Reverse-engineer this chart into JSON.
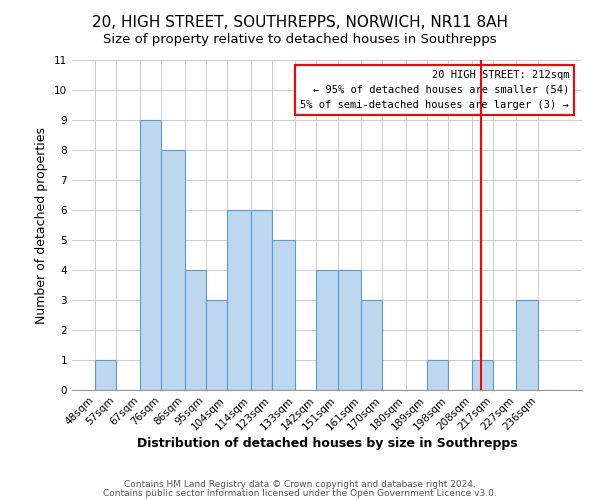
{
  "title": "20, HIGH STREET, SOUTHREPPS, NORWICH, NR11 8AH",
  "subtitle": "Size of property relative to detached houses in Southrepps",
  "xlabel": "Distribution of detached houses by size in Southrepps",
  "ylabel": "Number of detached properties",
  "bin_labels": [
    "48sqm",
    "57sqm",
    "67sqm",
    "76sqm",
    "86sqm",
    "95sqm",
    "104sqm",
    "114sqm",
    "123sqm",
    "133sqm",
    "142sqm",
    "151sqm",
    "161sqm",
    "170sqm",
    "180sqm",
    "189sqm",
    "198sqm",
    "208sqm",
    "217sqm",
    "227sqm",
    "236sqm"
  ],
  "bin_edges": [
    48,
    57,
    67,
    76,
    86,
    95,
    104,
    114,
    123,
    133,
    142,
    151,
    161,
    170,
    180,
    189,
    198,
    208,
    217,
    227,
    236
  ],
  "bar_heights": [
    1,
    0,
    9,
    8,
    4,
    3,
    6,
    6,
    5,
    0,
    4,
    4,
    3,
    0,
    0,
    1,
    0,
    1,
    0,
    3,
    0
  ],
  "bar_color": "#bdd7ee",
  "bar_edge_color": "#5b9bd5",
  "grid_color": "#cccccc",
  "red_line_x": 212,
  "annotation_text": "20 HIGH STREET: 212sqm\n← 95% of detached houses are smaller (54)\n5% of semi-detached houses are larger (3) →",
  "annotation_box_color": "#ff0000",
  "ylim": [
    0,
    11
  ],
  "yticks": [
    0,
    1,
    2,
    3,
    4,
    5,
    6,
    7,
    8,
    9,
    10,
    11
  ],
  "footer_line1": "Contains HM Land Registry data © Crown copyright and database right 2024.",
  "footer_line2": "Contains public sector information licensed under the Open Government Licence v3.0.",
  "background_color": "#ffffff",
  "title_fontsize": 11,
  "subtitle_fontsize": 9.5,
  "axis_label_fontsize": 9,
  "tick_fontsize": 7.5
}
